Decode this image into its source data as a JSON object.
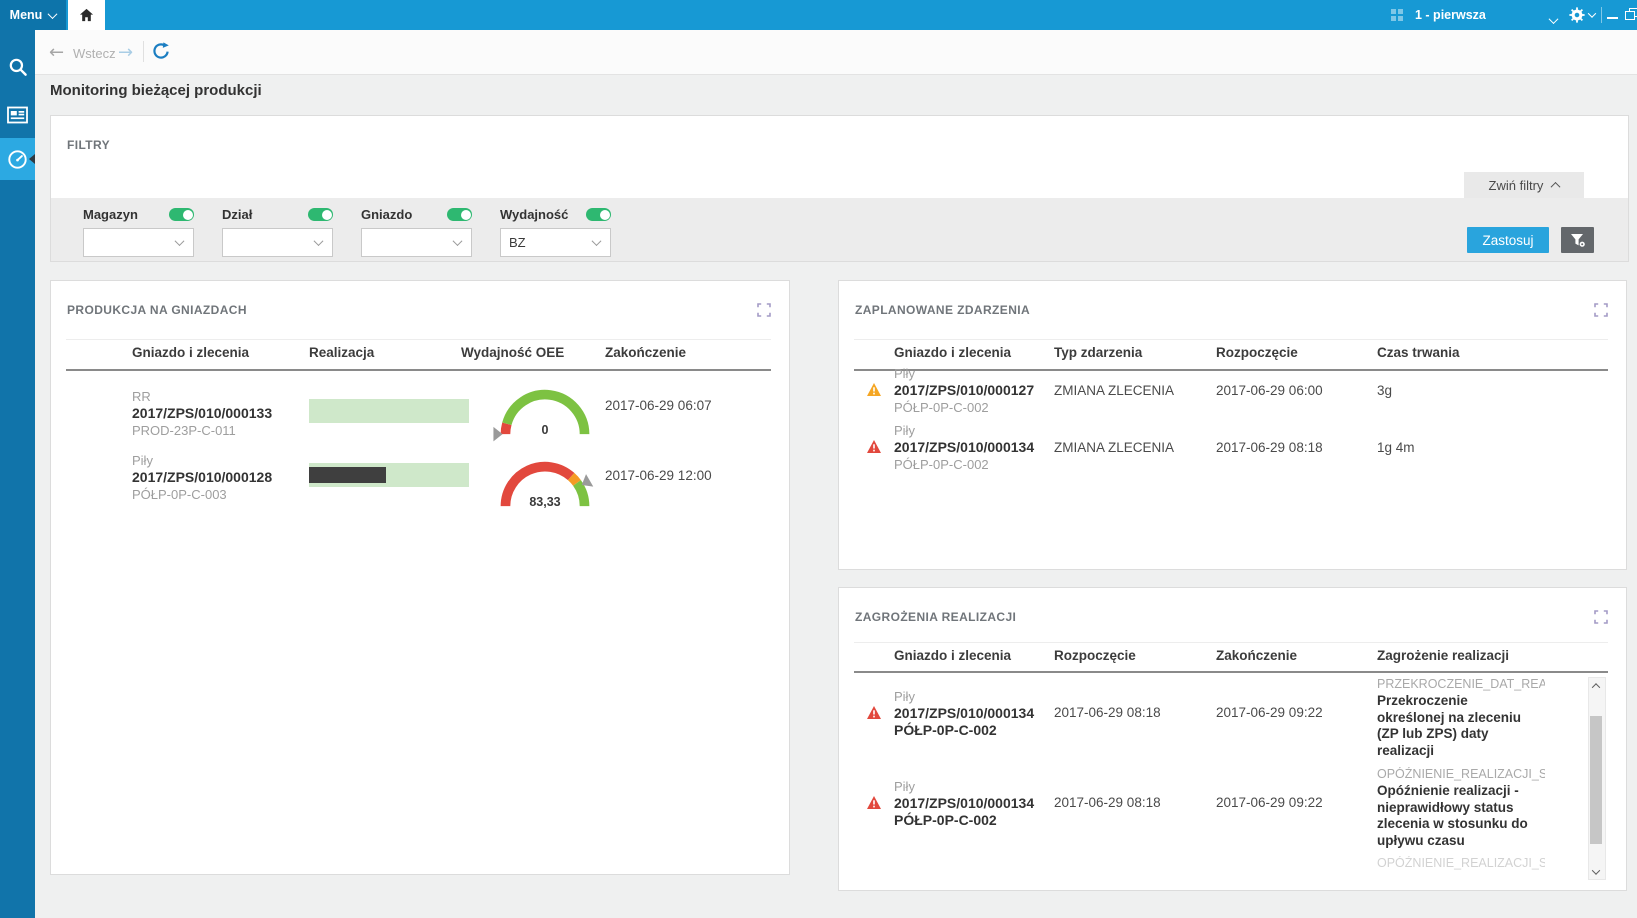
{
  "topbar": {
    "menu_label": "Menu",
    "workspace": "1 - pierwsza"
  },
  "toolbar": {
    "back_label": "Wstecz"
  },
  "page": {
    "title": "Monitoring bieżącej produkcji"
  },
  "filters": {
    "title": "FILTRY",
    "collapse_label": "Zwiń filtry",
    "apply_label": "Zastosuj",
    "fields": [
      {
        "label": "Magazyn",
        "value": "",
        "enabled": true
      },
      {
        "label": "Dział",
        "value": "",
        "enabled": true
      },
      {
        "label": "Gniazdo",
        "value": "",
        "enabled": true
      },
      {
        "label": "Wydajność",
        "value": "BZ",
        "enabled": true
      }
    ]
  },
  "production": {
    "title": "PRODUKCJA NA GNIAZDACH",
    "columns": [
      "Gniazdo i zlecenia",
      "Realizacja",
      "Wydajność OEE",
      "Zakończenie"
    ],
    "rows": [
      {
        "gniazdo": "RR",
        "order": "2017/ZPS/010/000133",
        "code": "PROD-23P-C-011",
        "progress_pct": 0,
        "oee": {
          "display": "0",
          "value": 0,
          "pointer": 0,
          "segments": [
            {
              "color": "#e2483d",
              "to": 0.085
            },
            {
              "color": "#7dc242",
              "to": 1
            }
          ]
        },
        "end": "2017-06-29 06:07"
      },
      {
        "gniazdo": "Piły",
        "order": "2017/ZPS/010/000128",
        "code": "PÓŁP-0P-C-003",
        "progress_pct": 48,
        "oee": {
          "display": "83,33",
          "value": 83.33,
          "pointer": 0.8333,
          "segments": [
            {
              "color": "#e2483d",
              "to": 0.73
            },
            {
              "color": "#f59a23",
              "to": 0.8
            },
            {
              "color": "#7dc242",
              "to": 1
            }
          ]
        },
        "end": "2017-06-29 12:00"
      }
    ]
  },
  "events": {
    "title": "ZAPLANOWANE ZDARZENIA",
    "columns": [
      "Gniazdo i zlecenia",
      "Typ zdarzenia",
      "Rozpoczęcie",
      "Czas trwania"
    ],
    "rows": [
      {
        "severity": "warning",
        "gniazdo": "Piły",
        "order": "2017/ZPS/010/000127",
        "code": "PÓŁP-0P-C-002",
        "type": "ZMIANA ZLECENIA",
        "start": "2017-06-29 06:00",
        "duration": "3g"
      },
      {
        "severity": "danger",
        "gniazdo": "Piły",
        "order": "2017/ZPS/010/000134",
        "code": "PÓŁP-0P-C-002",
        "type": "ZMIANA ZLECENIA",
        "start": "2017-06-29 08:18",
        "duration": "1g 4m"
      }
    ]
  },
  "risks": {
    "title": "ZAGROŻENIA REALIZACJI",
    "columns": [
      "Gniazdo i zlecenia",
      "Rozpoczęcie",
      "Zakończenie",
      "Zagrożenie realizacji"
    ],
    "rows": [
      {
        "severity": "danger",
        "gniazdo": "Piły",
        "order": "2017/ZPS/010/000134",
        "code": "PÓŁP-0P-C-002",
        "start": "2017-06-29 08:18",
        "end": "2017-06-29 09:22",
        "risk_code": "PRZEKROCZENIE_DAT_REAL",
        "risk_desc": "Przekroczenie określonej na zleceniu (ZP lub ZPS) daty realizacji"
      },
      {
        "severity": "danger",
        "gniazdo": "Piły",
        "order": "2017/ZPS/010/000134",
        "code": "PÓŁP-0P-C-002",
        "start": "2017-06-29 08:18",
        "end": "2017-06-29 09:22",
        "risk_code": "OPÓŹNIENIE_REALIZACJI_S",
        "risk_desc": "Opóźnienie realizacji - nieprawidłowy status zlecenia w stosunku do upływu czasu"
      }
    ],
    "partial_row_code": "OPÓŹNIENIE_REALIZACJI_S"
  },
  "colors": {
    "warning": "#f5a623",
    "danger": "#e2483d",
    "accent": "#29a4dd"
  }
}
